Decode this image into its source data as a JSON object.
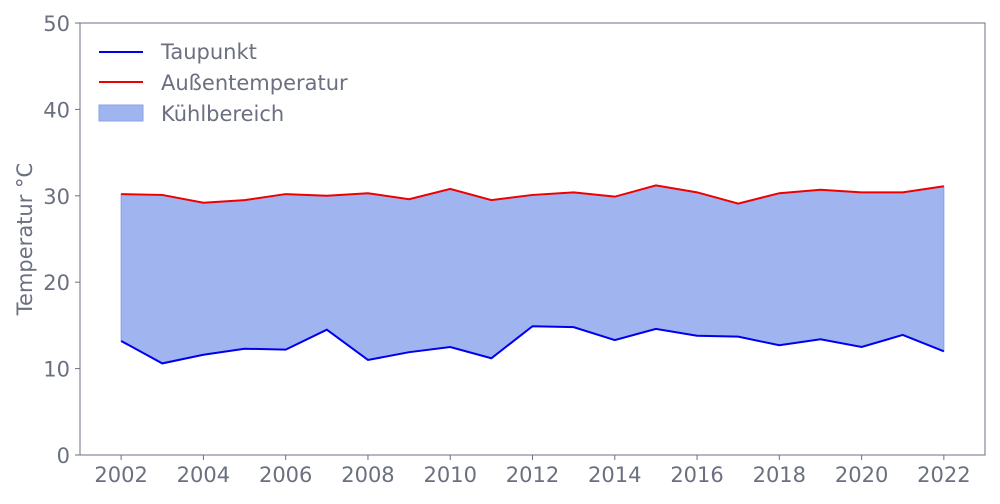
{
  "chart_data": {
    "type": "area",
    "title": "",
    "xlabel": "",
    "ylabel": "Temperatur °C",
    "xlim": [
      2001,
      2023
    ],
    "ylim": [
      0,
      50
    ],
    "xticks": [
      2002,
      2004,
      2006,
      2008,
      2010,
      2012,
      2014,
      2016,
      2018,
      2020,
      2022
    ],
    "yticks": [
      0,
      10,
      20,
      30,
      40,
      50
    ],
    "grid": false,
    "legend_position": "top-left",
    "x": [
      2002,
      2003,
      2004,
      2005,
      2006,
      2007,
      2008,
      2009,
      2010,
      2011,
      2012,
      2013,
      2014,
      2015,
      2016,
      2017,
      2018,
      2019,
      2020,
      2021,
      2022
    ],
    "series": [
      {
        "name": "Taupunkt",
        "color": "#0000ee",
        "values": [
          13.2,
          10.6,
          11.6,
          12.3,
          12.2,
          14.5,
          11.0,
          11.9,
          12.5,
          11.2,
          14.9,
          14.8,
          13.3,
          14.6,
          13.8,
          13.7,
          12.7,
          13.4,
          12.5,
          13.9,
          12.0
        ]
      },
      {
        "name": "Außentemperatur",
        "color": "#ee0000",
        "values": [
          30.2,
          30.1,
          29.2,
          29.5,
          30.2,
          30.0,
          30.3,
          29.6,
          30.8,
          29.5,
          30.1,
          30.4,
          29.9,
          31.2,
          30.4,
          29.1,
          30.3,
          30.7,
          30.4,
          30.4,
          31.1
        ]
      }
    ],
    "fill": {
      "name": "Kühlbereich",
      "between": [
        "Taupunkt",
        "Außentemperatur"
      ],
      "color": "#a0b4f0"
    }
  }
}
